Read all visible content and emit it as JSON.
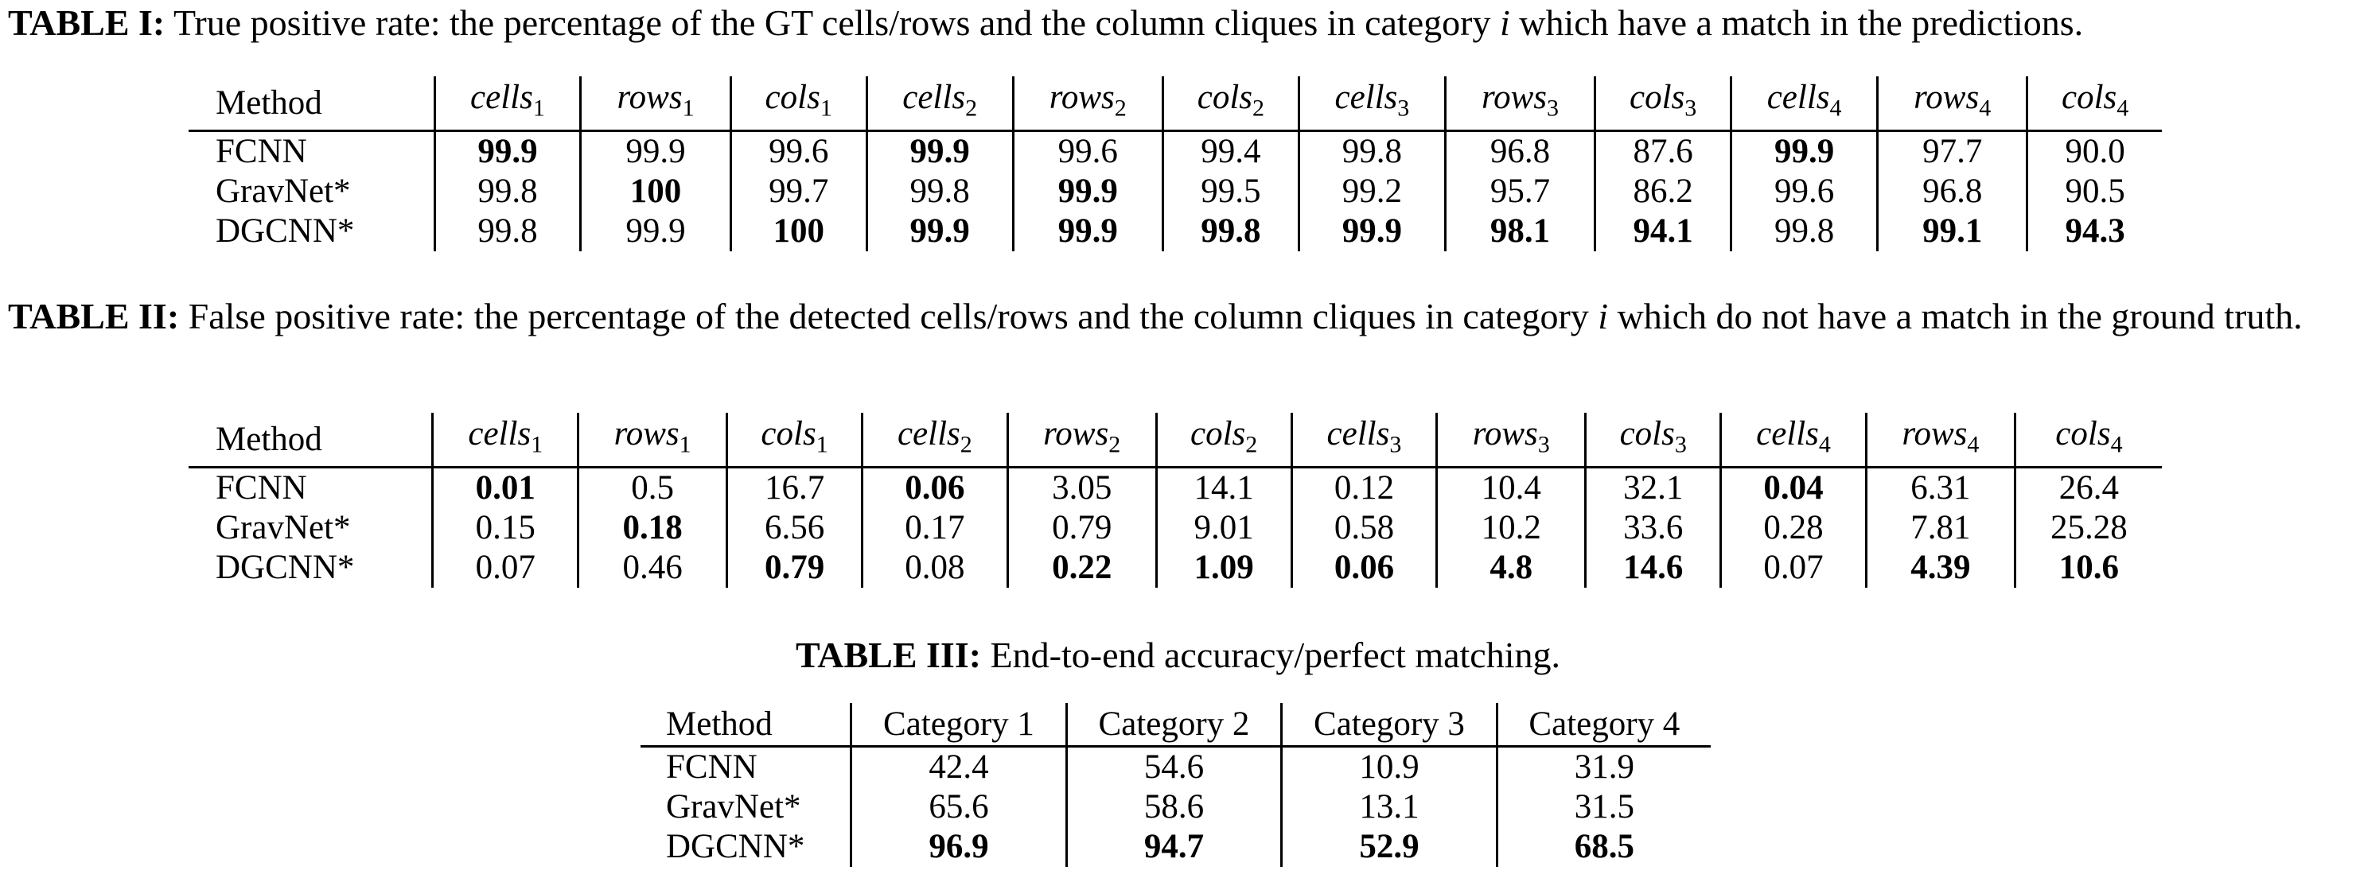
{
  "table1": {
    "caption_label": "TABLE I:",
    "caption_pre": "True positive rate: the percentage of the GT cells/rows and the column cliques in category",
    "caption_var": "i",
    "caption_post": "which have a match in the predictions.",
    "method_header": "Method",
    "columns": [
      {
        "name": "cells",
        "sub": "1"
      },
      {
        "name": "rows",
        "sub": "1"
      },
      {
        "name": "cols",
        "sub": "1"
      },
      {
        "name": "cells",
        "sub": "2"
      },
      {
        "name": "rows",
        "sub": "2"
      },
      {
        "name": "cols",
        "sub": "2"
      },
      {
        "name": "cells",
        "sub": "3"
      },
      {
        "name": "rows",
        "sub": "3"
      },
      {
        "name": "cols",
        "sub": "3"
      },
      {
        "name": "cells",
        "sub": "4"
      },
      {
        "name": "rows",
        "sub": "4"
      },
      {
        "name": "cols",
        "sub": "4"
      }
    ],
    "rows": [
      {
        "method": "FCNN",
        "values": [
          "99.9",
          "99.9",
          "99.6",
          "99.9",
          "99.6",
          "99.4",
          "99.8",
          "96.8",
          "87.6",
          "99.9",
          "97.7",
          "90.0"
        ],
        "bold": [
          true,
          false,
          false,
          true,
          false,
          false,
          false,
          false,
          false,
          true,
          false,
          false
        ]
      },
      {
        "method": "GravNet*",
        "values": [
          "99.8",
          "100",
          "99.7",
          "99.8",
          "99.9",
          "99.5",
          "99.2",
          "95.7",
          "86.2",
          "99.6",
          "96.8",
          "90.5"
        ],
        "bold": [
          false,
          true,
          false,
          false,
          true,
          false,
          false,
          false,
          false,
          false,
          false,
          false
        ]
      },
      {
        "method": "DGCNN*",
        "values": [
          "99.8",
          "99.9",
          "100",
          "99.9",
          "99.9",
          "99.8",
          "99.9",
          "98.1",
          "94.1",
          "99.8",
          "99.1",
          "94.3"
        ],
        "bold": [
          false,
          false,
          true,
          true,
          true,
          true,
          true,
          true,
          true,
          false,
          true,
          true
        ]
      }
    ]
  },
  "table2": {
    "caption_label": "TABLE II:",
    "caption_pre": "False positive rate: the percentage of the detected cells/rows and the column cliques in category",
    "caption_var": "i",
    "caption_post": "which do not have a match in the ground truth.",
    "method_header": "Method",
    "columns": [
      {
        "name": "cells",
        "sub": "1"
      },
      {
        "name": "rows",
        "sub": "1"
      },
      {
        "name": "cols",
        "sub": "1"
      },
      {
        "name": "cells",
        "sub": "2"
      },
      {
        "name": "rows",
        "sub": "2"
      },
      {
        "name": "cols",
        "sub": "2"
      },
      {
        "name": "cells",
        "sub": "3"
      },
      {
        "name": "rows",
        "sub": "3"
      },
      {
        "name": "cols",
        "sub": "3"
      },
      {
        "name": "cells",
        "sub": "4"
      },
      {
        "name": "rows",
        "sub": "4"
      },
      {
        "name": "cols",
        "sub": "4"
      }
    ],
    "rows": [
      {
        "method": "FCNN",
        "values": [
          "0.01",
          "0.5",
          "16.7",
          "0.06",
          "3.05",
          "14.1",
          "0.12",
          "10.4",
          "32.1",
          "0.04",
          "6.31",
          "26.4"
        ],
        "bold": [
          true,
          false,
          false,
          true,
          false,
          false,
          false,
          false,
          false,
          true,
          false,
          false
        ]
      },
      {
        "method": "GravNet*",
        "values": [
          "0.15",
          "0.18",
          "6.56",
          "0.17",
          "0.79",
          "9.01",
          "0.58",
          "10.2",
          "33.6",
          "0.28",
          "7.81",
          "25.28"
        ],
        "bold": [
          false,
          true,
          false,
          false,
          false,
          false,
          false,
          false,
          false,
          false,
          false,
          false
        ]
      },
      {
        "method": "DGCNN*",
        "values": [
          "0.07",
          "0.46",
          "0.79",
          "0.08",
          "0.22",
          "1.09",
          "0.06",
          "4.8",
          "14.6",
          "0.07",
          "4.39",
          "10.6"
        ],
        "bold": [
          false,
          false,
          true,
          false,
          true,
          true,
          true,
          true,
          true,
          false,
          true,
          true
        ]
      }
    ]
  },
  "table3": {
    "caption_label": "TABLE III:",
    "caption_text": "End-to-end accuracy/perfect matching.",
    "method_header": "Method",
    "columns": [
      "Category 1",
      "Category 2",
      "Category 3",
      "Category 4"
    ],
    "rows": [
      {
        "method": "FCNN",
        "values": [
          "42.4",
          "54.6",
          "10.9",
          "31.9"
        ],
        "bold": [
          false,
          false,
          false,
          false
        ]
      },
      {
        "method": "GravNet*",
        "values": [
          "65.6",
          "58.6",
          "13.1",
          "31.5"
        ],
        "bold": [
          false,
          false,
          false,
          false
        ]
      },
      {
        "method": "DGCNN*",
        "values": [
          "96.9",
          "94.7",
          "52.9",
          "68.5"
        ],
        "bold": [
          true,
          true,
          true,
          true
        ]
      }
    ]
  }
}
